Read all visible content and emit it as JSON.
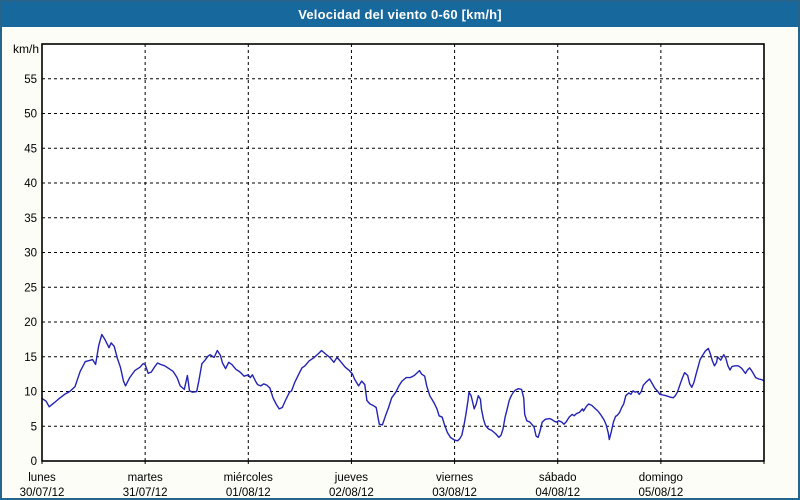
{
  "window": {
    "title": "Velocidad del viento 0-60 [km/h]"
  },
  "colors": {
    "titlebar": "#16689d",
    "window_border": "#27648c",
    "background": "#fbfdf6",
    "plot_background": "#ffffff",
    "grid": "#000000",
    "axis_text": "#000000",
    "title_text": "#ffffff",
    "line": "#2323b4"
  },
  "chart_data": {
    "type": "line",
    "title": "Velocidad del viento 0-60 [km/h]",
    "ylabel": "km/h",
    "xlabel": "",
    "ylim": [
      0,
      60
    ],
    "y_ticks": [
      0,
      5,
      10,
      15,
      20,
      25,
      30,
      35,
      40,
      45,
      50,
      55
    ],
    "grid": "dashed-black",
    "legend": "none",
    "x_days": [
      {
        "name": "lunes",
        "date": "30/07/12"
      },
      {
        "name": "martes",
        "date": "31/07/12"
      },
      {
        "name": "miércoles",
        "date": "01/08/12"
      },
      {
        "name": "jueves",
        "date": "02/08/12"
      },
      {
        "name": "viernes",
        "date": "03/08/12"
      },
      {
        "name": "sábado",
        "date": "04/08/12"
      },
      {
        "name": "domingo",
        "date": "05/08/12"
      }
    ],
    "series": [
      {
        "name": "velocidad del viento",
        "units": "km/h",
        "x_units": "days from lunes 30/07/12",
        "points": [
          [
            0.0,
            9.0
          ],
          [
            0.04,
            8.6
          ],
          [
            0.07,
            7.8
          ],
          [
            0.12,
            8.4
          ],
          [
            0.16,
            8.9
          ],
          [
            0.22,
            9.6
          ],
          [
            0.27,
            10.0
          ],
          [
            0.32,
            10.7
          ],
          [
            0.37,
            12.9
          ],
          [
            0.42,
            14.3
          ],
          [
            0.47,
            14.5
          ],
          [
            0.49,
            14.6
          ],
          [
            0.52,
            13.9
          ],
          [
            0.55,
            16.6
          ],
          [
            0.58,
            18.2
          ],
          [
            0.61,
            17.5
          ],
          [
            0.65,
            16.3
          ],
          [
            0.67,
            17.0
          ],
          [
            0.7,
            16.5
          ],
          [
            0.73,
            14.8
          ],
          [
            0.76,
            13.5
          ],
          [
            0.79,
            11.5
          ],
          [
            0.81,
            10.8
          ],
          [
            0.85,
            12.0
          ],
          [
            0.9,
            13.0
          ],
          [
            0.95,
            13.5
          ],
          [
            0.98,
            14.0
          ],
          [
            1.0,
            13.9
          ],
          [
            1.03,
            12.6
          ],
          [
            1.06,
            12.8
          ],
          [
            1.09,
            13.5
          ],
          [
            1.12,
            14.1
          ],
          [
            1.15,
            13.9
          ],
          [
            1.19,
            13.7
          ],
          [
            1.23,
            13.3
          ],
          [
            1.27,
            12.9
          ],
          [
            1.31,
            12.0
          ],
          [
            1.34,
            10.8
          ],
          [
            1.38,
            10.3
          ],
          [
            1.41,
            12.3
          ],
          [
            1.43,
            10.1
          ],
          [
            1.46,
            9.9
          ],
          [
            1.5,
            10.0
          ],
          [
            1.52,
            11.5
          ],
          [
            1.55,
            14.0
          ],
          [
            1.58,
            14.5
          ],
          [
            1.61,
            15.1
          ],
          [
            1.63,
            15.3
          ],
          [
            1.67,
            14.9
          ],
          [
            1.7,
            15.9
          ],
          [
            1.73,
            15.2
          ],
          [
            1.75,
            14.1
          ],
          [
            1.78,
            13.3
          ],
          [
            1.81,
            14.2
          ],
          [
            1.84,
            13.9
          ],
          [
            1.88,
            13.2
          ],
          [
            1.92,
            12.8
          ],
          [
            1.96,
            12.2
          ],
          [
            2.0,
            12.4
          ],
          [
            2.02,
            12.0
          ],
          [
            2.04,
            12.4
          ],
          [
            2.07,
            11.5
          ],
          [
            2.09,
            11.0
          ],
          [
            2.12,
            10.8
          ],
          [
            2.15,
            11.1
          ],
          [
            2.18,
            10.9
          ],
          [
            2.21,
            10.5
          ],
          [
            2.24,
            9.1
          ],
          [
            2.27,
            8.2
          ],
          [
            2.3,
            7.5
          ],
          [
            2.33,
            7.7
          ],
          [
            2.36,
            8.7
          ],
          [
            2.4,
            9.9
          ],
          [
            2.42,
            10.1
          ],
          [
            2.45,
            11.3
          ],
          [
            2.49,
            12.5
          ],
          [
            2.52,
            13.4
          ],
          [
            2.55,
            13.7
          ],
          [
            2.59,
            14.4
          ],
          [
            2.64,
            14.9
          ],
          [
            2.69,
            15.6
          ],
          [
            2.71,
            15.9
          ],
          [
            2.75,
            15.4
          ],
          [
            2.79,
            14.9
          ],
          [
            2.83,
            14.2
          ],
          [
            2.86,
            14.9
          ],
          [
            2.89,
            14.4
          ],
          [
            2.94,
            13.5
          ],
          [
            2.98,
            13.0
          ],
          [
            3.01,
            12.5
          ],
          [
            3.03,
            11.8
          ],
          [
            3.07,
            10.8
          ],
          [
            3.1,
            11.5
          ],
          [
            3.13,
            11.0
          ],
          [
            3.15,
            8.7
          ],
          [
            3.18,
            8.2
          ],
          [
            3.21,
            8.0
          ],
          [
            3.24,
            7.7
          ],
          [
            3.27,
            5.3
          ],
          [
            3.3,
            5.2
          ],
          [
            3.33,
            6.5
          ],
          [
            3.36,
            7.7
          ],
          [
            3.39,
            9.1
          ],
          [
            3.43,
            9.9
          ],
          [
            3.46,
            10.8
          ],
          [
            3.49,
            11.5
          ],
          [
            3.53,
            12.0
          ],
          [
            3.57,
            12.0
          ],
          [
            3.61,
            12.3
          ],
          [
            3.66,
            13.0
          ],
          [
            3.68,
            12.5
          ],
          [
            3.71,
            12.2
          ],
          [
            3.73,
            10.8
          ],
          [
            3.76,
            9.4
          ],
          [
            3.8,
            8.4
          ],
          [
            3.83,
            7.5
          ],
          [
            3.85,
            6.5
          ],
          [
            3.88,
            6.3
          ],
          [
            3.9,
            5.3
          ],
          [
            3.93,
            4.1
          ],
          [
            3.96,
            3.4
          ],
          [
            4.0,
            3.0
          ],
          [
            4.03,
            2.9
          ],
          [
            4.05,
            3.2
          ],
          [
            4.07,
            3.7
          ],
          [
            4.09,
            5.1
          ],
          [
            4.11,
            6.7
          ],
          [
            4.13,
            8.7
          ],
          [
            4.14,
            9.9
          ],
          [
            4.16,
            9.4
          ],
          [
            4.18,
            8.2
          ],
          [
            4.19,
            7.5
          ],
          [
            4.21,
            8.2
          ],
          [
            4.23,
            9.4
          ],
          [
            4.25,
            8.9
          ],
          [
            4.26,
            7.5
          ],
          [
            4.28,
            6.0
          ],
          [
            4.3,
            5.1
          ],
          [
            4.33,
            4.6
          ],
          [
            4.36,
            4.4
          ],
          [
            4.4,
            3.9
          ],
          [
            4.43,
            3.4
          ],
          [
            4.45,
            3.7
          ],
          [
            4.47,
            4.6
          ],
          [
            4.49,
            6.3
          ],
          [
            4.51,
            7.5
          ],
          [
            4.53,
            8.7
          ],
          [
            4.55,
            9.4
          ],
          [
            4.57,
            9.9
          ],
          [
            4.59,
            10.2
          ],
          [
            4.62,
            10.4
          ],
          [
            4.65,
            10.3
          ],
          [
            4.67,
            9.1
          ],
          [
            4.68,
            6.7
          ],
          [
            4.7,
            5.8
          ],
          [
            4.73,
            5.6
          ],
          [
            4.77,
            4.9
          ],
          [
            4.79,
            3.6
          ],
          [
            4.81,
            3.4
          ],
          [
            4.83,
            4.4
          ],
          [
            4.85,
            5.6
          ],
          [
            4.88,
            6.0
          ],
          [
            4.92,
            6.1
          ],
          [
            4.94,
            6.0
          ],
          [
            4.97,
            5.7
          ],
          [
            4.99,
            5.6
          ],
          [
            5.01,
            5.8
          ],
          [
            5.04,
            5.6
          ],
          [
            5.06,
            5.3
          ],
          [
            5.08,
            5.6
          ],
          [
            5.11,
            6.3
          ],
          [
            5.14,
            6.7
          ],
          [
            5.16,
            6.5
          ],
          [
            5.18,
            6.8
          ],
          [
            5.21,
            7.0
          ],
          [
            5.24,
            7.5
          ],
          [
            5.25,
            7.2
          ],
          [
            5.28,
            7.9
          ],
          [
            5.3,
            8.2
          ],
          [
            5.33,
            8.0
          ],
          [
            5.36,
            7.6
          ],
          [
            5.39,
            7.2
          ],
          [
            5.42,
            6.6
          ],
          [
            5.45,
            5.9
          ],
          [
            5.47,
            5.2
          ],
          [
            5.49,
            4.0
          ],
          [
            5.5,
            3.1
          ],
          [
            5.52,
            4.2
          ],
          [
            5.54,
            5.6
          ],
          [
            5.56,
            6.4
          ],
          [
            5.58,
            6.6
          ],
          [
            5.6,
            7.0
          ],
          [
            5.62,
            7.7
          ],
          [
            5.64,
            8.2
          ],
          [
            5.66,
            9.4
          ],
          [
            5.69,
            9.8
          ],
          [
            5.71,
            9.6
          ],
          [
            5.73,
            10.1
          ],
          [
            5.75,
            9.9
          ],
          [
            5.77,
            10.0
          ],
          [
            5.79,
            9.6
          ],
          [
            5.81,
            10.0
          ],
          [
            5.83,
            10.9
          ],
          [
            5.86,
            11.4
          ],
          [
            5.89,
            11.8
          ],
          [
            5.91,
            11.3
          ],
          [
            5.94,
            10.5
          ],
          [
            5.97,
            10.0
          ],
          [
            5.99,
            9.6
          ],
          [
            6.02,
            9.5
          ],
          [
            6.05,
            9.4
          ],
          [
            6.09,
            9.2
          ],
          [
            6.12,
            9.1
          ],
          [
            6.14,
            9.4
          ],
          [
            6.16,
            9.9
          ],
          [
            6.19,
            11.2
          ],
          [
            6.21,
            12.0
          ],
          [
            6.23,
            12.7
          ],
          [
            6.26,
            12.3
          ],
          [
            6.28,
            11.1
          ],
          [
            6.3,
            10.6
          ],
          [
            6.32,
            11.3
          ],
          [
            6.34,
            12.4
          ],
          [
            6.36,
            13.5
          ],
          [
            6.38,
            14.6
          ],
          [
            6.4,
            15.1
          ],
          [
            6.43,
            15.8
          ],
          [
            6.46,
            16.2
          ],
          [
            6.48,
            15.4
          ],
          [
            6.5,
            14.4
          ],
          [
            6.52,
            13.7
          ],
          [
            6.54,
            14.2
          ],
          [
            6.55,
            15.0
          ],
          [
            6.58,
            14.5
          ],
          [
            6.61,
            15.3
          ],
          [
            6.63,
            14.8
          ],
          [
            6.65,
            13.7
          ],
          [
            6.67,
            13.1
          ],
          [
            6.69,
            13.6
          ],
          [
            6.72,
            13.7
          ],
          [
            6.75,
            13.7
          ],
          [
            6.78,
            13.4
          ],
          [
            6.8,
            13.0
          ],
          [
            6.82,
            12.6
          ],
          [
            6.84,
            13.1
          ],
          [
            6.86,
            13.4
          ],
          [
            6.88,
            13.0
          ],
          [
            6.9,
            12.5
          ],
          [
            6.92,
            12.0
          ],
          [
            6.95,
            11.8
          ],
          [
            6.98,
            11.7
          ],
          [
            7.0,
            11.5
          ]
        ]
      }
    ]
  }
}
